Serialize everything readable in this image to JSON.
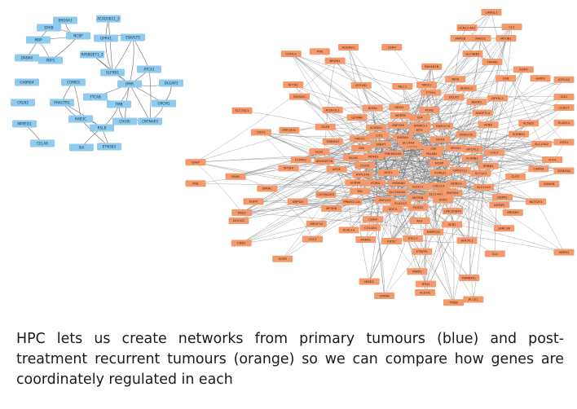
{
  "primary_network": {
    "color": "#8ecbee",
    "nodes": [
      "BRD043",
      "EPHB",
      "NCBP",
      "MBP",
      "DAB60",
      "PDP1",
      "ACADSB11_3",
      "GPR41",
      "ESKALTS",
      "RPSBDET1_3",
      "SLFRB1",
      "ATCA1",
      "JPHR",
      "DLGAP3",
      "GPCM1",
      "TMB",
      "CHURI",
      "CNTNAP3",
      "TTCAB",
      "GABRB4",
      "CRLN2",
      "COMD3",
      "PHACTR1",
      "RAB3C",
      "RSLB",
      "ETNSB3",
      "SIA",
      "MPPED1",
      "CELA8"
    ]
  },
  "recurrent_network": {
    "color": "#f3996b",
    "nodes": [
      "LANGL1",
      "UCNL2-AS1",
      "CL2",
      "FAM2B",
      "MAD2L",
      "MTUB1",
      "TRAMS",
      "SLC9BB1",
      "SH3GL2",
      "NOEL",
      "SLC21A3",
      "TMSB",
      "PTAGL3",
      "SGF8",
      "KCND2",
      "EMX2OS",
      "KIF5C",
      "STK17",
      "NCBP",
      "SPTB4",
      "RTN1",
      "PDZD2",
      "AFBD",
      "CCDC7",
      "PALMD",
      "CHL1",
      "NRXN1",
      "IGSF11",
      "TMEM47",
      "MEIS1",
      "ZNF536",
      "CUTC",
      "ATP1B2",
      "SLC1A3",
      "DPYSL3",
      "ELAVL4",
      "SCN9A",
      "GRIA2",
      "CRB1",
      "FABP7",
      "KLHL14",
      "DOCK3",
      "SEMA6D",
      "TCF4",
      "GRM3",
      "HPCAL1",
      "ZEB2",
      "CLU",
      "BCAN",
      "PLPPR1",
      "SOX9",
      "NTRK2",
      "AGT",
      "GJA1",
      "PREX2",
      "ERBB4",
      "LRRC3B",
      "SPARCL1",
      "CACNA2D3",
      "ITPR1",
      "PTPRZ1",
      "GPM6B",
      "PAX6",
      "RFX4",
      "NFIA",
      "SLC7A11",
      "OLIG2",
      "MLC1",
      "ETNPPL",
      "ATP13A4",
      "PPP1R3C",
      "CRYAB",
      "METRN",
      "RGMA",
      "HEPN1",
      "SHISA9",
      "TTYH1",
      "LGR4",
      "NDRG2",
      "ALDH1L1",
      "ALDOC",
      "ACSBG1",
      "PRODH",
      "GFAP",
      "SOX2",
      "MERTK",
      "PSD2",
      "ZNF423",
      "CAPN3",
      "PLCE1",
      "SLC25A18",
      "ANGPTL4",
      "MMD2",
      "FAM107A",
      "DCLK1",
      "AQP4",
      "ITGB4",
      "MFGE8",
      "NWD1",
      "SDC4",
      "EDNRB",
      "PHKA1",
      "PLXNB1",
      "BMPR1B",
      "CHI3L1",
      "ID4",
      "NOTCH1",
      "TRIL",
      "LIX1",
      "AHCYL1",
      "EGFR",
      "FGFR3",
      "CDH4",
      "SEMA5A",
      "TNC",
      "MEGF10",
      "RANBP3L",
      "SLC14A1",
      "PPARGC1A",
      "ADGRV1",
      "GPR37L1",
      "ARHGEF26",
      "CDO1",
      "SPON1",
      "BBOX1",
      "SLC15A2",
      "PLA2G7",
      "SMPD4",
      "FAM181B",
      "ZNF804",
      "LINC00844",
      "ATP1A2",
      "SLC4A4",
      "COL4A5",
      "RFTN2",
      "CXCL14",
      "IGFBP2",
      "FAM20C",
      "TMEM255A",
      "SORBS1",
      "PTN",
      "CPE",
      "GLUL",
      "CST3",
      "APOE",
      "ENPP2",
      "SPARC",
      "DBI",
      "PON2",
      "CKB",
      "MT3"
    ]
  },
  "caption": "HPC lets us create networks from primary tumours (blue) and post-treatment recurrent tumours (orange) so we can compare how genes are coordinately regulated in each"
}
